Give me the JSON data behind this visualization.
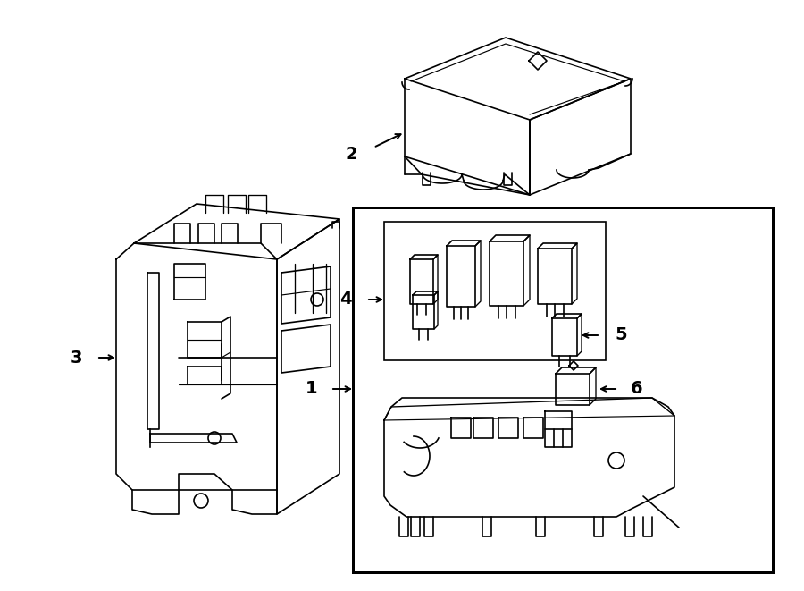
{
  "bg_color": "#ffffff",
  "lc": "#000000",
  "lw": 1.2,
  "fig_w": 9.0,
  "fig_h": 6.61,
  "dpi": 100
}
